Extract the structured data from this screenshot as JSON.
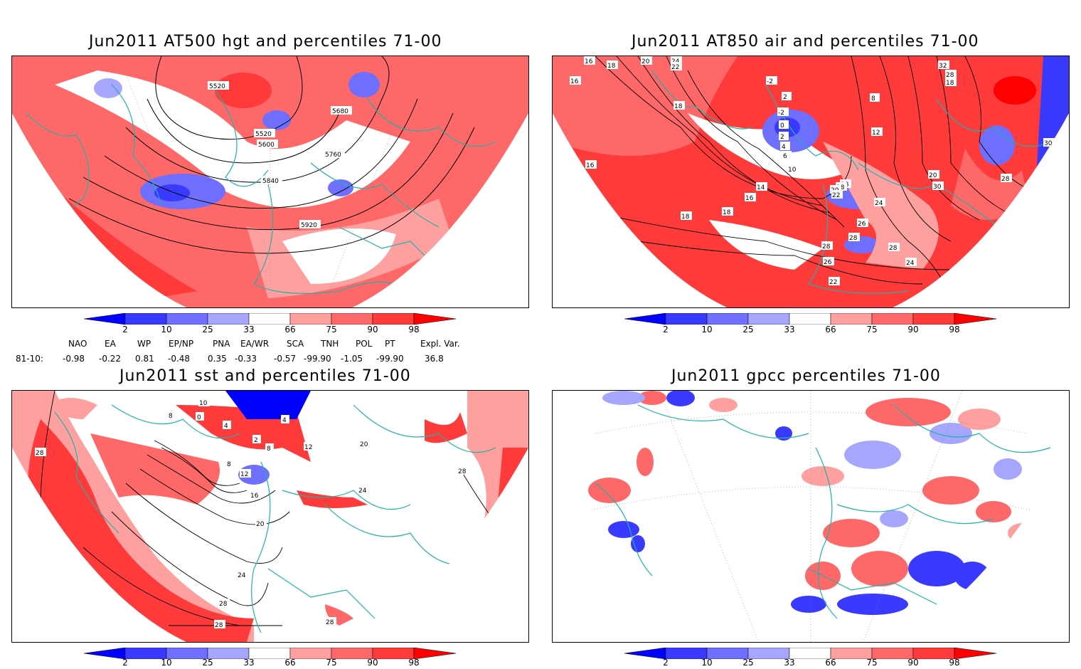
{
  "panels": [
    {
      "title": "Jun2011 AT500 hgt and percentiles 71-00",
      "contour_labels": [
        "5520",
        "5520",
        "5600",
        "5680",
        "5760",
        "5840",
        "5920"
      ]
    },
    {
      "title": "Jun2011 AT850 air and percentiles 71-00",
      "contour_labels": [
        "20",
        "24",
        "22",
        "16",
        "18",
        "-2",
        "2",
        "-2",
        "0",
        "2",
        "4",
        "6",
        "8",
        "10",
        "12",
        "14",
        "16",
        "18",
        "18",
        "16",
        "18",
        "18",
        "20",
        "22",
        "24",
        "26",
        "28",
        "30",
        "28",
        "28",
        "26",
        "24",
        "22",
        "20",
        "18",
        "28",
        "32",
        "30",
        "28",
        "16",
        "18"
      ]
    },
    {
      "title": "Jun2011 sst and percentiles 71-00",
      "contour_labels": [
        "28",
        "8",
        "0",
        "4",
        "10",
        "8",
        "4",
        "2",
        "12",
        "8",
        "16",
        "20",
        "24",
        "28",
        "28",
        "28",
        "12",
        "20",
        "24",
        "28"
      ]
    },
    {
      "title": "Jun2011 gpcc percentiles 71-00",
      "contour_labels": []
    }
  ],
  "colorbar": {
    "labels": [
      "2",
      "10",
      "25",
      "33",
      "66",
      "75",
      "90",
      "98"
    ],
    "colors": [
      "#0000ff",
      "#3a3aff",
      "#6e6eff",
      "#a6a6ff",
      "#ffffff",
      "#ffa0a0",
      "#ff6868",
      "#ff3a3a",
      "#ff0000"
    ]
  },
  "indices": {
    "headers": [
      "NAO",
      "EA",
      "WP",
      "EP/NP",
      "PNA",
      "EA/WR",
      "SCA",
      "TNH",
      "POL",
      "PT",
      "Expl. Var."
    ],
    "row_label": "81-10:",
    "values": [
      "-0.98",
      "-0.22",
      "0.81",
      "-0.48",
      "0.35",
      "-0.33",
      "-0.57",
      "-99.90",
      "-1.05",
      "-99.90",
      "36.8"
    ]
  }
}
